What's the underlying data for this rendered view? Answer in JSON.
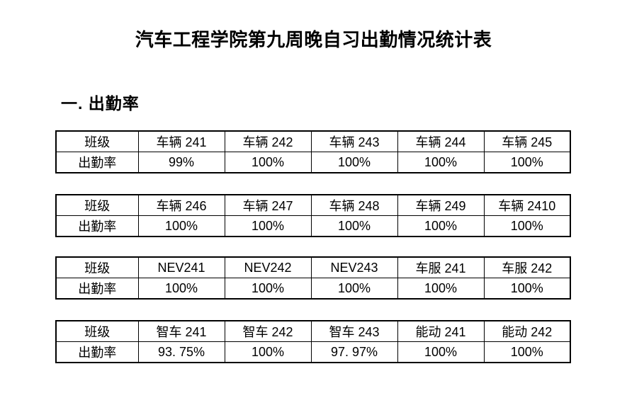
{
  "page": {
    "title": "汽车工程学院第九周晚自习出勤情况统计表",
    "section_heading": "一. 出勤率"
  },
  "tables": [
    {
      "row_labels": [
        "班级",
        "出勤率"
      ],
      "classes": [
        "车辆 241",
        "车辆 242",
        "车辆 243",
        "车辆 244",
        "车辆 245"
      ],
      "rates": [
        "99%",
        "100%",
        "100%",
        "100%",
        "100%"
      ]
    },
    {
      "row_labels": [
        "班级",
        "出勤率"
      ],
      "classes": [
        "车辆 246",
        "车辆 247",
        "车辆 248",
        "车辆 249",
        "车辆 2410"
      ],
      "rates": [
        "100%",
        "100%",
        "100%",
        "100%",
        "100%"
      ]
    },
    {
      "row_labels": [
        "班级",
        "出勤率"
      ],
      "classes": [
        "NEV241",
        "NEV242",
        "NEV243",
        "车服 241",
        "车服 242"
      ],
      "rates": [
        "100%",
        "100%",
        "100%",
        "100%",
        "100%"
      ]
    },
    {
      "row_labels": [
        "班级",
        "出勤率"
      ],
      "classes": [
        "智车 241",
        "智车 242",
        "智车 243",
        "能动 241",
        "能动 242"
      ],
      "rates": [
        "93. 75%",
        "100%",
        "97. 97%",
        "100%",
        "100%"
      ]
    }
  ]
}
